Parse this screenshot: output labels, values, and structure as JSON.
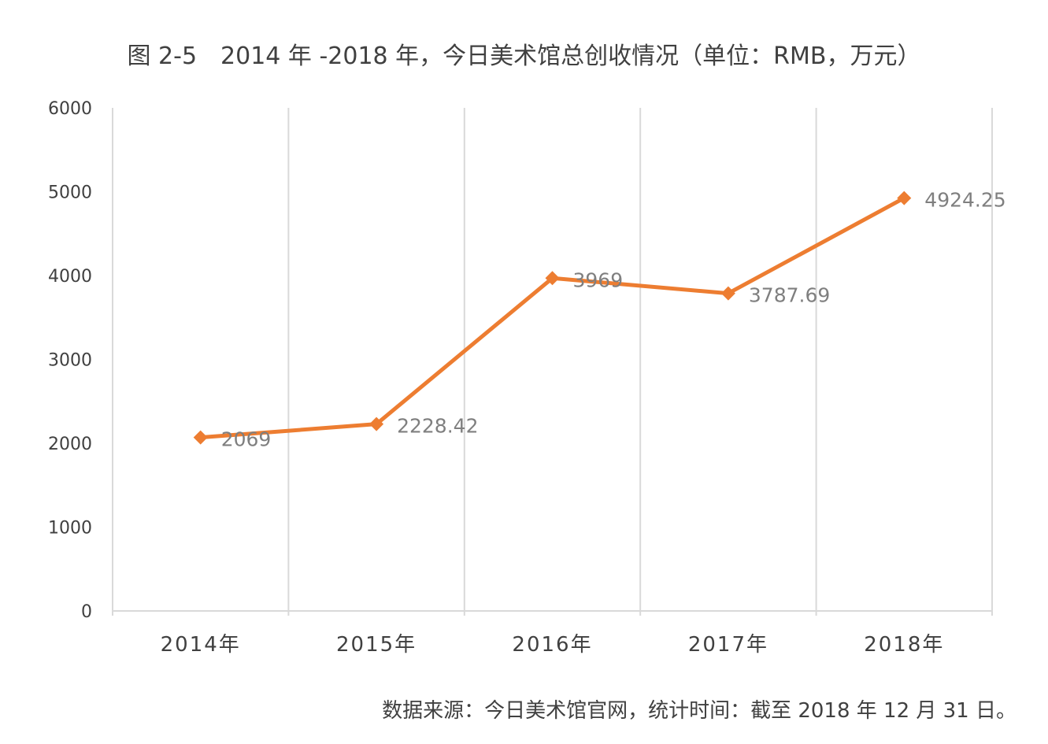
{
  "title": "图 2-5　2014 年 -2018 年，今日美术馆总创收情况（单位：RMB，万元）",
  "source_note": "数据来源：今日美术馆官网，统计时间：截至 2018 年 12 月 31 日。",
  "colors": {
    "series": "#ed7d31",
    "gridline": "#d9d9d9",
    "axis_text": "#404040",
    "label_text": "#7f7f7f"
  },
  "chart_data": {
    "type": "line",
    "title": "图 2-5　2014 年 -2018 年，今日美术馆总创收情况（单位：RMB，万元）",
    "categories": [
      "2014年",
      "2015年",
      "2016年",
      "2017年",
      "2018年"
    ],
    "values": [
      2069,
      2228.42,
      3969,
      3787.69,
      4924.25
    ],
    "data_labels": [
      "2069",
      "2228.42",
      "3969",
      "3787.69",
      "4924.25"
    ],
    "y_ticks": [
      "0",
      "1000",
      "2000",
      "3000",
      "4000",
      "5000",
      "6000"
    ],
    "ylim": [
      0,
      6000
    ],
    "xlabel": "",
    "ylabel": "",
    "marker": "diamond",
    "grid": "vertical",
    "legend": "none"
  }
}
